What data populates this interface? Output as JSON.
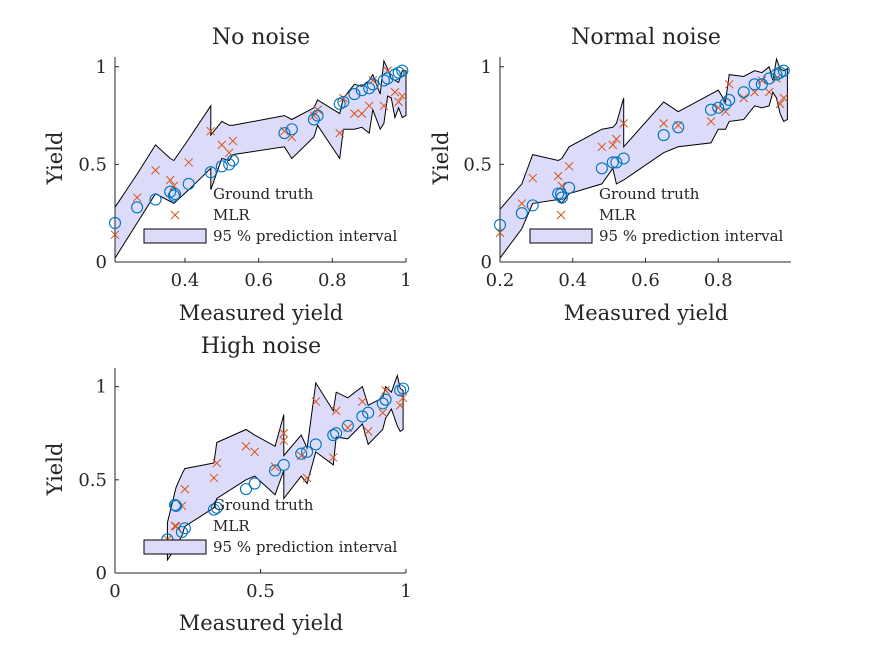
{
  "chart_data": [
    {
      "type": "scatter",
      "title": "No noise",
      "xlabel": "Measured yield",
      "ylabel": "Yield",
      "xlim": [
        0.21,
        1.0
      ],
      "ylim": [
        0,
        1.05
      ],
      "xticks": [
        0.4,
        0.6,
        0.8,
        1
      ],
      "xtick_labels": [
        "0.4",
        "0.6",
        "0.8",
        "1"
      ],
      "yticks": [
        0,
        0.5,
        1
      ],
      "ytick_labels": [
        "0",
        "0.5",
        "1"
      ],
      "legend": [
        "Ground truth",
        "MLR",
        "95 % prediction interval"
      ],
      "legend_position": "bottom-right",
      "series": [
        {
          "name": "Ground truth",
          "marker": "circle",
          "color": "#0072BD",
          "points": [
            [
              0.21,
              0.2
            ],
            [
              0.27,
              0.28
            ],
            [
              0.32,
              0.32
            ],
            [
              0.36,
              0.36
            ],
            [
              0.37,
              0.34
            ],
            [
              0.41,
              0.4
            ],
            [
              0.47,
              0.46
            ],
            [
              0.5,
              0.49
            ],
            [
              0.52,
              0.5
            ],
            [
              0.53,
              0.52
            ],
            [
              0.67,
              0.66
            ],
            [
              0.69,
              0.68
            ],
            [
              0.75,
              0.73
            ],
            [
              0.76,
              0.75
            ],
            [
              0.82,
              0.81
            ],
            [
              0.83,
              0.82
            ],
            [
              0.86,
              0.86
            ],
            [
              0.88,
              0.88
            ],
            [
              0.9,
              0.89
            ],
            [
              0.91,
              0.91
            ],
            [
              0.94,
              0.93
            ],
            [
              0.95,
              0.94
            ],
            [
              0.97,
              0.96
            ],
            [
              0.98,
              0.97
            ],
            [
              0.99,
              0.98
            ]
          ]
        },
        {
          "name": "MLR",
          "marker": "x",
          "color": "#D95319",
          "points": [
            [
              0.21,
              0.14
            ],
            [
              0.27,
              0.33
            ],
            [
              0.32,
              0.47
            ],
            [
              0.36,
              0.42
            ],
            [
              0.37,
              0.39
            ],
            [
              0.41,
              0.51
            ],
            [
              0.47,
              0.67
            ],
            [
              0.5,
              0.6
            ],
            [
              0.52,
              0.56
            ],
            [
              0.53,
              0.62
            ],
            [
              0.67,
              0.67
            ],
            [
              0.69,
              0.64
            ],
            [
              0.75,
              0.75
            ],
            [
              0.76,
              0.78
            ],
            [
              0.82,
              0.66
            ],
            [
              0.83,
              0.84
            ],
            [
              0.86,
              0.76
            ],
            [
              0.88,
              0.76
            ],
            [
              0.9,
              0.8
            ],
            [
              0.91,
              0.93
            ],
            [
              0.94,
              0.8
            ],
            [
              0.95,
              0.98
            ],
            [
              0.97,
              0.87
            ],
            [
              0.98,
              0.82
            ],
            [
              0.99,
              0.85
            ]
          ]
        },
        {
          "name": "95 % prediction interval",
          "type": "band",
          "color": "#DCDCFA",
          "x": [
            0.21,
            0.27,
            0.32,
            0.36,
            0.37,
            0.41,
            0.47,
            0.47,
            0.5,
            0.52,
            0.53,
            0.67,
            0.69,
            0.75,
            0.76,
            0.82,
            0.83,
            0.86,
            0.88,
            0.9,
            0.91,
            0.93,
            0.94,
            0.95,
            0.96,
            0.97,
            0.98,
            0.99,
            1.0
          ],
          "lower": [
            0.02,
            0.2,
            0.35,
            0.31,
            0.3,
            0.37,
            0.48,
            0.37,
            0.53,
            0.52,
            0.55,
            0.59,
            0.53,
            0.64,
            0.7,
            0.53,
            0.68,
            0.68,
            0.69,
            0.66,
            0.78,
            0.68,
            0.71,
            0.85,
            0.84,
            0.74,
            0.79,
            0.74,
            0.75
          ],
          "upper": [
            0.28,
            0.45,
            0.6,
            0.53,
            0.52,
            0.63,
            0.8,
            0.65,
            0.72,
            0.7,
            0.7,
            0.75,
            0.73,
            0.79,
            0.83,
            0.76,
            0.84,
            0.91,
            0.9,
            0.93,
            0.96,
            0.86,
            1.03,
            0.99,
            0.94,
            0.93,
            0.92,
            0.98,
            0.98
          ]
        }
      ]
    },
    {
      "type": "scatter",
      "title": "Normal noise",
      "xlabel": "Measured yield",
      "ylabel": "Yield",
      "xlim": [
        0.2,
        1.0
      ],
      "ylim": [
        0,
        1.05
      ],
      "xticks": [
        0.2,
        0.4,
        0.6,
        0.8
      ],
      "xtick_labels": [
        "0.2",
        "0.4",
        "0.6",
        "0.8"
      ],
      "yticks": [
        0,
        0.5,
        1
      ],
      "ytick_labels": [
        "0",
        "0.5",
        "1"
      ],
      "legend": [
        "Ground truth",
        "MLR",
        "95 % prediction interval"
      ],
      "legend_position": "bottom-right",
      "series": [
        {
          "name": "Ground truth",
          "marker": "circle",
          "color": "#0072BD",
          "points": [
            [
              0.2,
              0.19
            ],
            [
              0.26,
              0.25
            ],
            [
              0.29,
              0.29
            ],
            [
              0.36,
              0.35
            ],
            [
              0.37,
              0.33
            ],
            [
              0.39,
              0.38
            ],
            [
              0.48,
              0.48
            ],
            [
              0.51,
              0.51
            ],
            [
              0.52,
              0.51
            ],
            [
              0.54,
              0.53
            ],
            [
              0.65,
              0.65
            ],
            [
              0.69,
              0.69
            ],
            [
              0.78,
              0.78
            ],
            [
              0.8,
              0.79
            ],
            [
              0.82,
              0.81
            ],
            [
              0.83,
              0.83
            ],
            [
              0.87,
              0.87
            ],
            [
              0.9,
              0.91
            ],
            [
              0.92,
              0.91
            ],
            [
              0.94,
              0.94
            ],
            [
              0.96,
              0.96
            ],
            [
              0.97,
              0.97
            ],
            [
              0.98,
              0.98
            ]
          ]
        },
        {
          "name": "MLR",
          "marker": "x",
          "color": "#D95319",
          "points": [
            [
              0.2,
              0.15
            ],
            [
              0.26,
              0.3
            ],
            [
              0.29,
              0.43
            ],
            [
              0.36,
              0.44
            ],
            [
              0.37,
              0.39
            ],
            [
              0.39,
              0.49
            ],
            [
              0.48,
              0.59
            ],
            [
              0.51,
              0.6
            ],
            [
              0.52,
              0.63
            ],
            [
              0.54,
              0.71
            ],
            [
              0.65,
              0.71
            ],
            [
              0.69,
              0.7
            ],
            [
              0.78,
              0.72
            ],
            [
              0.8,
              0.79
            ],
            [
              0.82,
              0.77
            ],
            [
              0.83,
              0.91
            ],
            [
              0.87,
              0.84
            ],
            [
              0.9,
              0.87
            ],
            [
              0.92,
              0.93
            ],
            [
              0.94,
              0.87
            ],
            [
              0.96,
              0.94
            ],
            [
              0.97,
              0.81
            ],
            [
              0.98,
              0.84
            ]
          ]
        },
        {
          "name": "95 % prediction interval",
          "type": "band",
          "color": "#DCDCFA",
          "x": [
            0.2,
            0.26,
            0.29,
            0.36,
            0.37,
            0.39,
            0.48,
            0.51,
            0.52,
            0.54,
            0.54,
            0.65,
            0.69,
            0.78,
            0.8,
            0.82,
            0.83,
            0.87,
            0.9,
            0.92,
            0.94,
            0.95,
            0.96,
            0.97,
            0.98,
            0.99
          ],
          "lower": [
            0.02,
            0.17,
            0.3,
            0.32,
            0.3,
            0.35,
            0.4,
            0.48,
            0.4,
            0.42,
            0.42,
            0.56,
            0.59,
            0.61,
            0.68,
            0.68,
            0.72,
            0.73,
            0.8,
            0.79,
            0.8,
            0.87,
            0.84,
            0.76,
            0.72,
            0.73
          ],
          "upper": [
            0.27,
            0.4,
            0.55,
            0.52,
            0.53,
            0.59,
            0.68,
            0.69,
            0.71,
            0.84,
            0.59,
            0.82,
            0.77,
            0.86,
            0.88,
            0.82,
            0.96,
            0.95,
            0.98,
            0.97,
            1.0,
            0.93,
            1.04,
            0.99,
            0.98,
            0.99
          ]
        }
      ]
    },
    {
      "type": "scatter",
      "title": "High noise",
      "xlabel": "Measured yield",
      "ylabel": "Yield",
      "xlim": [
        0,
        1.0
      ],
      "ylim": [
        0,
        1.1
      ],
      "xticks": [
        0,
        0.5,
        1
      ],
      "xtick_labels": [
        "0",
        "0.5",
        "1"
      ],
      "yticks": [
        0,
        0.5,
        1
      ],
      "ytick_labels": [
        "0",
        "0.5",
        "1"
      ],
      "legend": [
        "Ground truth",
        "MLR",
        "95 % prediction interval"
      ],
      "legend_position": "bottom-right",
      "series": [
        {
          "name": "Ground truth",
          "marker": "circle",
          "color": "#0072BD",
          "points": [
            [
              0.18,
              0.18
            ],
            [
              0.21,
              0.36
            ],
            [
              0.23,
              0.22
            ],
            [
              0.24,
              0.24
            ],
            [
              0.34,
              0.34
            ],
            [
              0.35,
              0.35
            ],
            [
              0.45,
              0.45
            ],
            [
              0.48,
              0.48
            ],
            [
              0.55,
              0.55
            ],
            [
              0.58,
              0.58
            ],
            [
              0.64,
              0.64
            ],
            [
              0.66,
              0.65
            ],
            [
              0.69,
              0.69
            ],
            [
              0.75,
              0.74
            ],
            [
              0.76,
              0.75
            ],
            [
              0.8,
              0.79
            ],
            [
              0.85,
              0.84
            ],
            [
              0.87,
              0.86
            ],
            [
              0.92,
              0.91
            ],
            [
              0.93,
              0.93
            ],
            [
              0.98,
              0.98
            ],
            [
              0.99,
              0.99
            ]
          ]
        },
        {
          "name": "MLR",
          "marker": "x",
          "color": "#D95319",
          "points": [
            [
              0.18,
              0.18
            ],
            [
              0.21,
              0.25
            ],
            [
              0.23,
              0.36
            ],
            [
              0.24,
              0.45
            ],
            [
              0.34,
              0.51
            ],
            [
              0.35,
              0.59
            ],
            [
              0.45,
              0.68
            ],
            [
              0.48,
              0.65
            ],
            [
              0.55,
              0.57
            ],
            [
              0.58,
              0.75
            ],
            [
              0.58,
              0.71
            ],
            [
              0.64,
              0.63
            ],
            [
              0.66,
              0.51
            ],
            [
              0.69,
              0.92
            ],
            [
              0.75,
              0.62
            ],
            [
              0.76,
              0.87
            ],
            [
              0.8,
              0.78
            ],
            [
              0.85,
              0.92
            ],
            [
              0.87,
              0.76
            ],
            [
              0.92,
              0.86
            ],
            [
              0.93,
              0.98
            ],
            [
              0.98,
              0.9
            ],
            [
              0.99,
              0.94
            ]
          ]
        },
        {
          "name": "95 % prediction interval",
          "type": "band",
          "color": "#DCDCFA",
          "x": [
            0.18,
            0.21,
            0.23,
            0.24,
            0.34,
            0.35,
            0.45,
            0.48,
            0.55,
            0.58,
            0.58,
            0.64,
            0.66,
            0.69,
            0.75,
            0.76,
            0.8,
            0.85,
            0.87,
            0.92,
            0.93,
            0.95,
            0.97,
            0.98,
            0.99
          ],
          "lower": [
            0.07,
            0.14,
            0.2,
            0.25,
            0.35,
            0.4,
            0.5,
            0.52,
            0.42,
            0.55,
            0.4,
            0.52,
            0.48,
            0.65,
            0.58,
            0.73,
            0.72,
            0.8,
            0.69,
            0.77,
            0.83,
            0.88,
            0.79,
            0.76,
            0.77
          ],
          "upper": [
            0.27,
            0.46,
            0.53,
            0.56,
            0.59,
            0.7,
            0.77,
            0.74,
            0.68,
            0.85,
            0.63,
            0.74,
            0.67,
            1.02,
            0.87,
            0.97,
            0.94,
            1.0,
            0.9,
            0.94,
            1.0,
            0.97,
            1.06,
            0.99,
            0.98
          ]
        }
      ]
    }
  ]
}
